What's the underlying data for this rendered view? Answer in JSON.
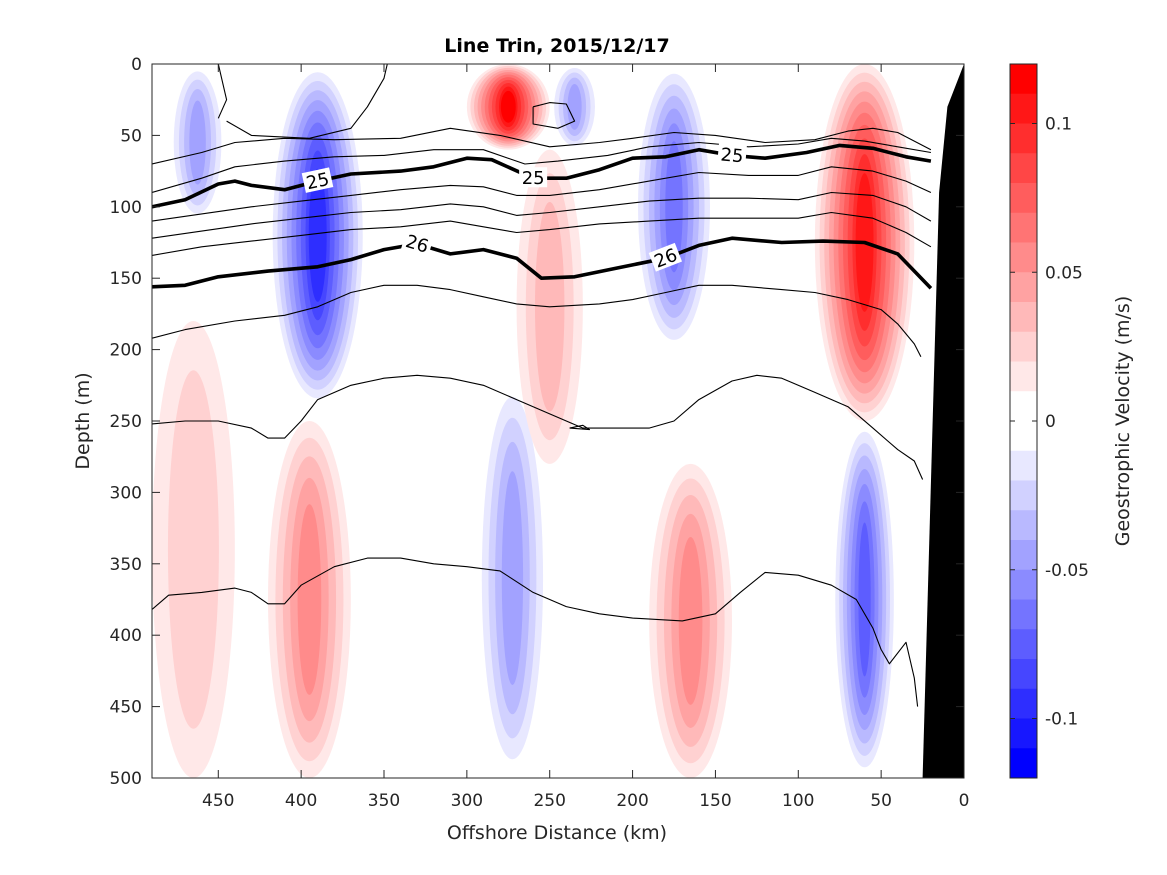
{
  "chart_data": {
    "type": "heatmap",
    "title": "Line Trin, 2015/12/17",
    "xlabel": "Offshore Distance (km)",
    "ylabel": "Depth (m)",
    "colorbar_label": "Geostrophic Velocity (m/s)",
    "xlim": [
      490,
      0
    ],
    "ylim": [
      0,
      500
    ],
    "x_ticks": [
      450,
      400,
      350,
      300,
      250,
      200,
      150,
      100,
      50,
      0
    ],
    "y_ticks": [
      0,
      50,
      100,
      150,
      200,
      250,
      300,
      350,
      400,
      450,
      500
    ],
    "colorbar": {
      "range": [
        -0.12,
        0.12
      ],
      "levels": 24,
      "ticks": [
        0.1,
        0.05,
        0,
        -0.05,
        -0.1
      ],
      "ticks_text": [
        "0.1",
        "0.05",
        "0",
        "-0.05",
        "-0.1"
      ],
      "positive_color": "#ff0000",
      "negative_color": "#0000ff",
      "zero_color": "#ffffff"
    },
    "velocity_features": [
      {
        "sign": "negative",
        "x_range": [
          480,
          445
        ],
        "depth_range": [
          0,
          110
        ],
        "peak": -0.05
      },
      {
        "sign": "negative",
        "x_range": [
          420,
          360
        ],
        "depth_range": [
          0,
          240
        ],
        "peak": -0.1
      },
      {
        "sign": "positive",
        "x_range": [
          300,
          250
        ],
        "depth_range": [
          0,
          60
        ],
        "peak": 0.11
      },
      {
        "sign": "negative",
        "x_range": [
          250,
          220
        ],
        "depth_range": [
          0,
          60
        ],
        "peak": -0.05
      },
      {
        "sign": "negative",
        "x_range": [
          200,
          150
        ],
        "depth_range": [
          0,
          200
        ],
        "peak": -0.07
      },
      {
        "sign": "positive",
        "x_range": [
          90,
          30
        ],
        "depth_range": [
          0,
          250
        ],
        "peak": 0.1
      },
      {
        "sign": "positive",
        "x_range": [
          420,
          370
        ],
        "depth_range": [
          250,
          500
        ],
        "peak": 0.05
      },
      {
        "sign": "negative",
        "x_range": [
          295,
          250
        ],
        "depth_range": [
          220,
          500
        ],
        "peak": -0.05
      },
      {
        "sign": "positive",
        "x_range": [
          190,
          140
        ],
        "depth_range": [
          280,
          500
        ],
        "peak": 0.05
      },
      {
        "sign": "negative",
        "x_range": [
          80,
          40
        ],
        "depth_range": [
          250,
          500
        ],
        "peak": -0.08
      },
      {
        "sign": "positive",
        "x_range": [
          490,
          440
        ],
        "depth_range": [
          180,
          500
        ],
        "peak": 0.02
      },
      {
        "sign": "positive",
        "x_range": [
          270,
          230
        ],
        "depth_range": [
          60,
          280
        ],
        "peak": 0.03
      }
    ],
    "density_contours": [
      {
        "value": 25,
        "bold": true,
        "labels_text": [
          "25",
          "25",
          "25"
        ],
        "points": [
          [
            490,
            100
          ],
          [
            470,
            95
          ],
          [
            450,
            84
          ],
          [
            440,
            82
          ],
          [
            430,
            85
          ],
          [
            410,
            88
          ],
          [
            390,
            82
          ],
          [
            370,
            77
          ],
          [
            340,
            75
          ],
          [
            320,
            72
          ],
          [
            300,
            66
          ],
          [
            285,
            67
          ],
          [
            260,
            80
          ],
          [
            240,
            80
          ],
          [
            220,
            74
          ],
          [
            200,
            66
          ],
          [
            180,
            65
          ],
          [
            160,
            60
          ],
          [
            140,
            64
          ],
          [
            120,
            66
          ],
          [
            95,
            62
          ],
          [
            75,
            57
          ],
          [
            55,
            59
          ],
          [
            35,
            65
          ],
          [
            20,
            68
          ]
        ]
      },
      {
        "value": 26,
        "bold": true,
        "labels_text": [
          "26",
          "26"
        ],
        "points": [
          [
            490,
            156
          ],
          [
            470,
            155
          ],
          [
            450,
            149
          ],
          [
            420,
            145
          ],
          [
            390,
            142
          ],
          [
            370,
            137
          ],
          [
            350,
            130
          ],
          [
            330,
            126
          ],
          [
            310,
            133
          ],
          [
            290,
            130
          ],
          [
            270,
            136
          ],
          [
            255,
            150
          ],
          [
            235,
            149
          ],
          [
            210,
            143
          ],
          [
            180,
            136
          ],
          [
            160,
            127
          ],
          [
            140,
            122
          ],
          [
            110,
            125
          ],
          [
            85,
            124
          ],
          [
            60,
            125
          ],
          [
            40,
            133
          ],
          [
            20,
            157
          ]
        ]
      },
      {
        "value": null,
        "bold": false,
        "points": [
          [
            445,
            40
          ],
          [
            430,
            50
          ],
          [
            395,
            52
          ],
          [
            370,
            45
          ],
          [
            360,
            30
          ],
          [
            350,
            10
          ],
          [
            348,
            0
          ]
        ]
      },
      {
        "value": null,
        "bold": false,
        "points": [
          [
            450,
            0
          ],
          [
            445,
            25
          ],
          [
            450,
            38
          ]
        ]
      },
      {
        "value": null,
        "bold": false,
        "points": [
          [
            260,
            30
          ],
          [
            250,
            27
          ],
          [
            240,
            28
          ],
          [
            235,
            40
          ],
          [
            245,
            45
          ],
          [
            260,
            42
          ],
          [
            260,
            30
          ]
        ]
      },
      {
        "value": null,
        "bold": false,
        "points": [
          [
            490,
            70
          ],
          [
            460,
            62
          ],
          [
            440,
            55
          ],
          [
            410,
            52
          ],
          [
            380,
            53
          ],
          [
            340,
            52
          ],
          [
            310,
            45
          ],
          [
            280,
            50
          ],
          [
            250,
            58
          ],
          [
            220,
            55
          ],
          [
            200,
            52
          ],
          [
            175,
            48
          ],
          [
            150,
            50
          ],
          [
            120,
            55
          ],
          [
            90,
            53
          ],
          [
            70,
            47
          ],
          [
            55,
            45
          ],
          [
            40,
            48
          ],
          [
            20,
            60
          ]
        ]
      },
      {
        "value": null,
        "bold": false,
        "points": [
          [
            490,
            90
          ],
          [
            460,
            80
          ],
          [
            440,
            72
          ],
          [
            410,
            68
          ],
          [
            380,
            65
          ],
          [
            350,
            64
          ],
          [
            320,
            60
          ],
          [
            290,
            60
          ],
          [
            265,
            70
          ],
          [
            245,
            68
          ],
          [
            215,
            64
          ],
          [
            190,
            58
          ],
          [
            160,
            55
          ],
          [
            130,
            58
          ],
          [
            100,
            56
          ],
          [
            80,
            52
          ],
          [
            60,
            54
          ],
          [
            40,
            58
          ],
          [
            20,
            62
          ]
        ]
      },
      {
        "value": null,
        "bold": false,
        "points": [
          [
            490,
            110
          ],
          [
            460,
            105
          ],
          [
            430,
            100
          ],
          [
            400,
            96
          ],
          [
            370,
            92
          ],
          [
            340,
            88
          ],
          [
            310,
            85
          ],
          [
            290,
            86
          ],
          [
            270,
            92
          ],
          [
            250,
            92
          ],
          [
            220,
            88
          ],
          [
            190,
            82
          ],
          [
            160,
            76
          ],
          [
            130,
            78
          ],
          [
            100,
            78
          ],
          [
            80,
            72
          ],
          [
            55,
            75
          ],
          [
            35,
            82
          ],
          [
            20,
            90
          ]
        ]
      },
      {
        "value": null,
        "bold": false,
        "points": [
          [
            490,
            122
          ],
          [
            460,
            117
          ],
          [
            430,
            112
          ],
          [
            400,
            108
          ],
          [
            370,
            104
          ],
          [
            340,
            102
          ],
          [
            310,
            98
          ],
          [
            290,
            100
          ],
          [
            270,
            106
          ],
          [
            250,
            104
          ],
          [
            220,
            100
          ],
          [
            190,
            96
          ],
          [
            160,
            94
          ],
          [
            130,
            94
          ],
          [
            100,
            95
          ],
          [
            80,
            90
          ],
          [
            55,
            92
          ],
          [
            35,
            100
          ],
          [
            20,
            110
          ]
        ]
      },
      {
        "value": null,
        "bold": false,
        "points": [
          [
            490,
            134
          ],
          [
            460,
            128
          ],
          [
            430,
            124
          ],
          [
            400,
            120
          ],
          [
            370,
            116
          ],
          [
            340,
            114
          ],
          [
            310,
            110
          ],
          [
            290,
            114
          ],
          [
            270,
            118
          ],
          [
            250,
            116
          ],
          [
            220,
            112
          ],
          [
            190,
            110
          ],
          [
            160,
            108
          ],
          [
            130,
            108
          ],
          [
            100,
            108
          ],
          [
            80,
            104
          ],
          [
            55,
            108
          ],
          [
            35,
            118
          ],
          [
            20,
            128
          ]
        ]
      },
      {
        "value": null,
        "bold": false,
        "points": [
          [
            490,
            192
          ],
          [
            470,
            186
          ],
          [
            440,
            180
          ],
          [
            410,
            176
          ],
          [
            390,
            170
          ],
          [
            370,
            160
          ],
          [
            350,
            155
          ],
          [
            330,
            155
          ],
          [
            310,
            158
          ],
          [
            290,
            163
          ],
          [
            270,
            168
          ],
          [
            250,
            170
          ],
          [
            220,
            168
          ],
          [
            200,
            165
          ],
          [
            180,
            160
          ],
          [
            160,
            155
          ],
          [
            140,
            155
          ],
          [
            110,
            158
          ],
          [
            90,
            160
          ],
          [
            70,
            165
          ],
          [
            50,
            172
          ],
          [
            40,
            182
          ],
          [
            30,
            196
          ],
          [
            26,
            205
          ]
        ]
      },
      {
        "value": null,
        "bold": false,
        "points": [
          [
            490,
            252
          ],
          [
            470,
            250
          ],
          [
            450,
            250
          ],
          [
            430,
            255
          ],
          [
            420,
            262
          ],
          [
            410,
            262
          ],
          [
            400,
            250
          ],
          [
            390,
            235
          ],
          [
            370,
            225
          ],
          [
            350,
            220
          ],
          [
            330,
            218
          ],
          [
            310,
            220
          ],
          [
            290,
            225
          ],
          [
            270,
            235
          ],
          [
            250,
            245
          ],
          [
            230,
            255
          ],
          [
            210,
            255
          ],
          [
            190,
            255
          ],
          [
            175,
            250
          ],
          [
            160,
            235
          ],
          [
            140,
            222
          ],
          [
            125,
            218
          ],
          [
            110,
            220
          ],
          [
            90,
            230
          ],
          [
            70,
            240
          ],
          [
            55,
            255
          ],
          [
            40,
            270
          ],
          [
            30,
            278
          ],
          [
            25,
            291
          ]
        ]
      },
      {
        "value": null,
        "bold": false,
        "points": [
          [
            238,
            255
          ],
          [
            230,
            253
          ],
          [
            226,
            256
          ],
          [
            238,
            255
          ]
        ]
      },
      {
        "value": null,
        "bold": false,
        "points": [
          [
            490,
            382
          ],
          [
            480,
            372
          ],
          [
            460,
            370
          ],
          [
            440,
            367
          ],
          [
            430,
            370
          ],
          [
            420,
            378
          ],
          [
            410,
            378
          ],
          [
            400,
            365
          ],
          [
            380,
            352
          ],
          [
            360,
            346
          ],
          [
            340,
            346
          ],
          [
            320,
            350
          ],
          [
            300,
            352
          ],
          [
            280,
            355
          ],
          [
            260,
            370
          ],
          [
            240,
            380
          ],
          [
            220,
            385
          ],
          [
            200,
            388
          ],
          [
            170,
            390
          ],
          [
            150,
            385
          ],
          [
            135,
            370
          ],
          [
            120,
            356
          ],
          [
            100,
            358
          ],
          [
            80,
            365
          ],
          [
            65,
            375
          ],
          [
            55,
            395
          ],
          [
            50,
            410
          ],
          [
            45,
            420
          ],
          [
            35,
            405
          ],
          [
            30,
            430
          ],
          [
            28,
            450
          ]
        ]
      }
    ],
    "topography": {
      "bottom_depth_at_zero": 0,
      "points": [
        [
          0,
          0
        ],
        [
          10,
          30
        ],
        [
          15,
          90
        ],
        [
          25,
          500
        ]
      ],
      "color": "#000000"
    }
  }
}
